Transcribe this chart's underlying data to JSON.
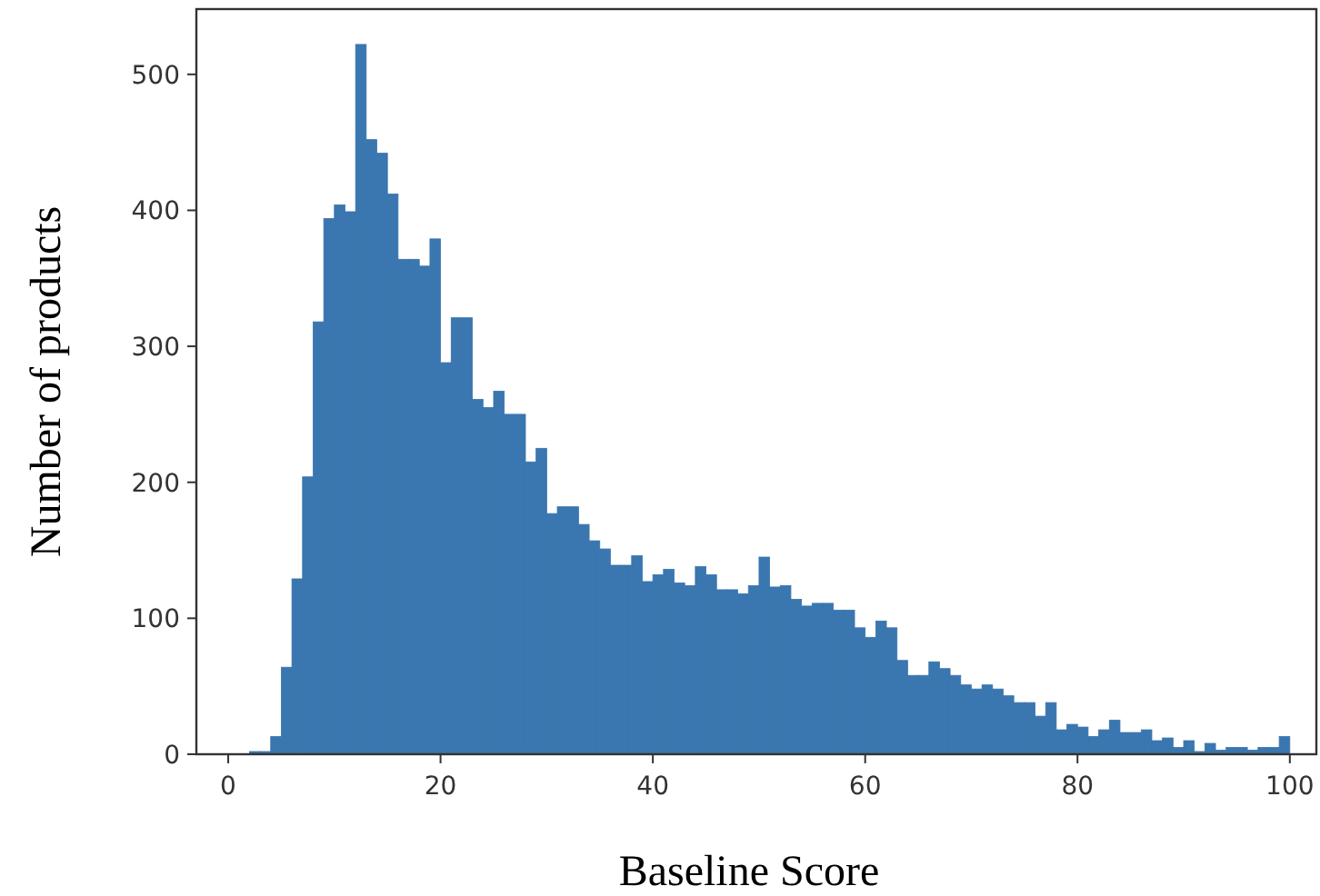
{
  "chart_data": {
    "type": "histogram",
    "xlabel": "Baseline Score",
    "ylabel": "Number of products",
    "color": "#3a76af",
    "bins": [
      2,
      3,
      4,
      5,
      6,
      7,
      8,
      9,
      10,
      11,
      12,
      13,
      14,
      15,
      16,
      17,
      18,
      19,
      20,
      21,
      22,
      23,
      24,
      25,
      26,
      27,
      28,
      29,
      30,
      31,
      32,
      33,
      34,
      35,
      36,
      37,
      38,
      39,
      40,
      41,
      42,
      43,
      44,
      45,
      46,
      47,
      48,
      49,
      50,
      51,
      52,
      53,
      54,
      55,
      56,
      57,
      58,
      59,
      60,
      61,
      62,
      63,
      64,
      65,
      66,
      67,
      68,
      69,
      70,
      71,
      72,
      73,
      74,
      75,
      76,
      77,
      78,
      79,
      80,
      81,
      82,
      83,
      84,
      85,
      86,
      87,
      88,
      89,
      90,
      91,
      92,
      93,
      94,
      95,
      96,
      97,
      98,
      99,
      100
    ],
    "values": [
      2,
      2,
      13,
      64,
      129,
      204,
      318,
      394,
      404,
      399,
      522,
      452,
      442,
      412,
      364,
      364,
      359,
      379,
      288,
      321,
      321,
      261,
      255,
      267,
      250,
      250,
      215,
      225,
      177,
      182,
      182,
      169,
      157,
      151,
      139,
      139,
      146,
      127,
      132,
      136,
      126,
      124,
      138,
      132,
      121,
      121,
      118,
      124,
      145,
      123,
      124,
      114,
      109,
      111,
      111,
      106,
      106,
      93,
      86,
      98,
      93,
      69,
      58,
      58,
      68,
      63,
      58,
      51,
      48,
      51,
      48,
      43,
      38,
      38,
      28,
      38,
      18,
      22,
      20,
      13,
      18,
      25,
      16,
      16,
      18,
      10,
      12,
      5,
      10,
      2,
      8,
      3,
      5,
      5,
      3,
      5,
      5,
      13
    ],
    "xlim": [
      -3,
      102.5
    ],
    "ylim": [
      0,
      548
    ],
    "xticks": [
      0,
      20,
      40,
      60,
      80,
      100
    ],
    "yticks": [
      0,
      100,
      200,
      300,
      400,
      500
    ],
    "grid": false
  }
}
